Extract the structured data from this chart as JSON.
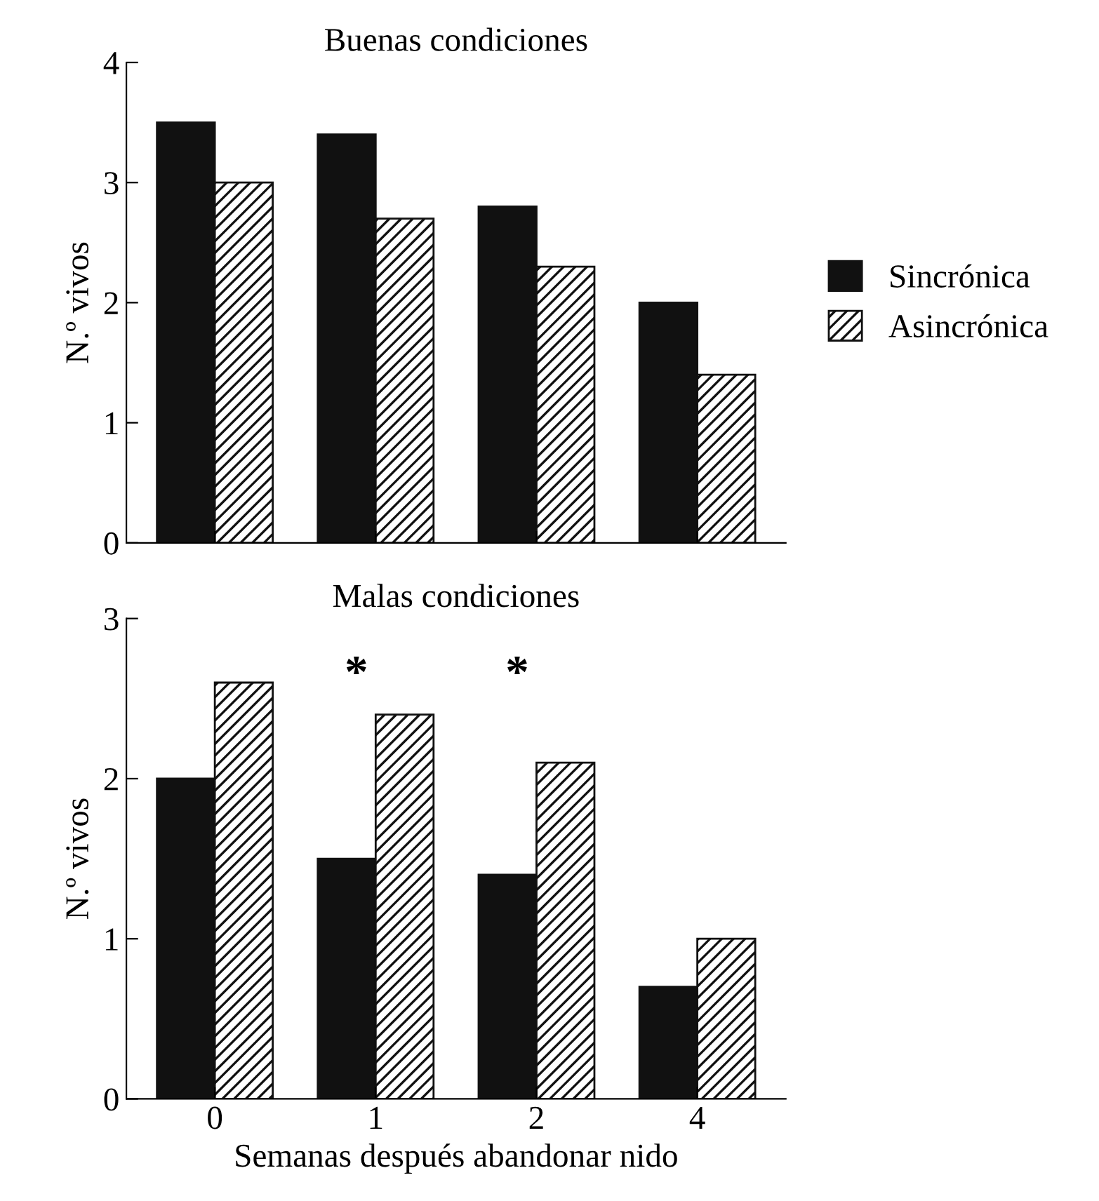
{
  "chart_data": [
    {
      "type": "bar",
      "title": "Buenas condiciones",
      "ylabel": "N.º vivos",
      "categories": [
        "0",
        "1",
        "2",
        "4"
      ],
      "series": [
        {
          "name": "Sincrónica",
          "color": "#111111",
          "values": [
            3.5,
            3.4,
            2.8,
            2.0
          ]
        },
        {
          "name": "Asincrónica",
          "color": "#111111",
          "values": [
            3.0,
            2.7,
            2.3,
            1.4
          ]
        }
      ],
      "ylim": [
        0,
        4
      ],
      "yticks": [
        0,
        1,
        2,
        3,
        4
      ],
      "grid": false,
      "legend": "right",
      "tick_labels": "y"
    },
    {
      "type": "bar",
      "title": "Malas condiciones",
      "ylabel": "N.º vivos",
      "xlabel": "Semanas después abandonar nido",
      "categories": [
        "0",
        "1",
        "2",
        "4"
      ],
      "series": [
        {
          "color": "#111111",
          "values": [
            2.0,
            1.5,
            1.4,
            0.7
          ]
        },
        {
          "color": "#111111",
          "values": [
            2.6,
            2.4,
            2.1,
            1.0
          ]
        }
      ],
      "annotations": [
        "*",
        "*"
      ],
      "ylim": [
        0,
        3
      ],
      "yticks": [
        0,
        1,
        2,
        3
      ],
      "grid": false,
      "legend": false
    }
  ]
}
